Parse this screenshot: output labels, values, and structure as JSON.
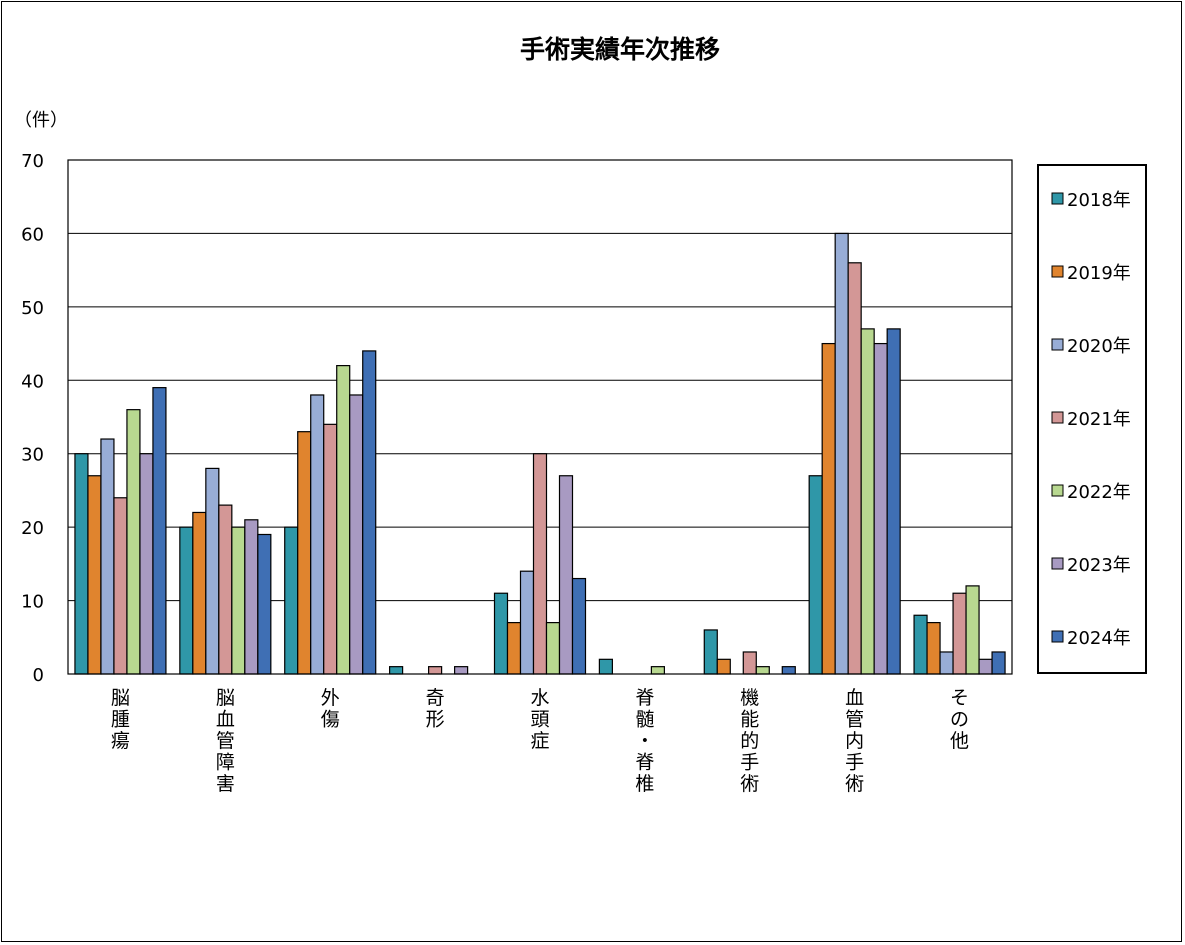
{
  "chart_data": {
    "type": "bar",
    "title": "手術実績年次推移",
    "unit_label": "（件）",
    "xlabel": "",
    "ylabel": "",
    "ylim": [
      0,
      70
    ],
    "yticks": [
      0,
      10,
      20,
      30,
      40,
      50,
      60,
      70
    ],
    "grid": true,
    "legend_position": "right",
    "categories": [
      "脳腫瘍",
      "脳血管障害",
      "外傷",
      "奇形",
      "水頭症",
      "脊髄・脊椎",
      "機能的手術",
      "血管内手術",
      "その他"
    ],
    "series": [
      {
        "name": "2018年",
        "color": "#2f97a8",
        "values": [
          30,
          20,
          20,
          1,
          11,
          2,
          6,
          27,
          8
        ]
      },
      {
        "name": "2019年",
        "color": "#e0842e",
        "values": [
          27,
          22,
          33,
          0,
          7,
          0,
          2,
          45,
          7
        ]
      },
      {
        "name": "2020年",
        "color": "#98add6",
        "values": [
          32,
          28,
          38,
          0,
          14,
          0,
          0,
          60,
          3
        ]
      },
      {
        "name": "2021年",
        "color": "#d39796",
        "values": [
          24,
          23,
          34,
          1,
          30,
          0,
          3,
          56,
          11
        ]
      },
      {
        "name": "2022年",
        "color": "#b8d890",
        "values": [
          36,
          20,
          42,
          0,
          7,
          1,
          1,
          47,
          12
        ]
      },
      {
        "name": "2023年",
        "color": "#a89ac2",
        "values": [
          30,
          21,
          38,
          1,
          27,
          0,
          0,
          45,
          2
        ]
      },
      {
        "name": "2024年",
        "color": "#3f6fb4",
        "values": [
          39,
          19,
          44,
          0,
          13,
          0,
          1,
          47,
          3
        ]
      }
    ]
  }
}
